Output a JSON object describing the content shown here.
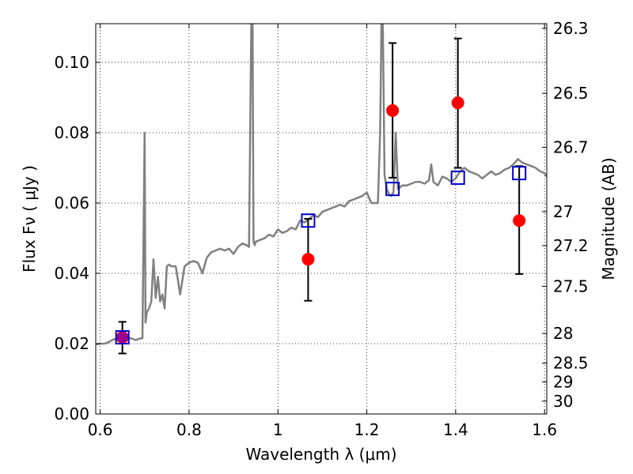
{
  "chart_data": {
    "type": "scatter",
    "xlabel": "Wavelength  λ (μm)",
    "ylabel_left": "Flux  Fν  ( μJy )",
    "ylabel_right": "Magnitude (AB)",
    "xlim": [
      0.59,
      1.605
    ],
    "ylim": [
      0.0,
      0.111
    ],
    "grid": true,
    "x_ticks": [
      0.6,
      0.8,
      1.0,
      1.2,
      1.4,
      1.6
    ],
    "x_tick_labels": [
      "0.6",
      "0.8",
      "1",
      "1.2",
      "1.4",
      "1.6"
    ],
    "y_ticks": [
      0.0,
      0.02,
      0.04,
      0.06,
      0.08,
      0.1
    ],
    "y_tick_labels": [
      "0.00",
      "0.02",
      "0.04",
      "0.06",
      "0.08",
      "0.10"
    ],
    "right_ticks": [
      {
        "label": "26.3",
        "value": 26.3
      },
      {
        "label": "26.5",
        "value": 26.5
      },
      {
        "label": "26.7",
        "value": 26.7
      },
      {
        "label": "27",
        "value": 27.0
      },
      {
        "label": "27.2",
        "value": 27.2
      },
      {
        "label": "27.5",
        "value": 27.5
      },
      {
        "label": "28",
        "value": 28.0
      },
      {
        "label": "28.5",
        "value": 28.5
      },
      {
        "label": "29",
        "value": 29.0
      },
      {
        "label": "30",
        "value": 30.0
      }
    ],
    "observed": {
      "color": "#ff0000",
      "points": [
        {
          "x": 0.65,
          "y": 0.0218,
          "yerr_low": 0.0172,
          "yerr_high": 0.0262
        },
        {
          "x": 1.068,
          "y": 0.044,
          "yerr_low": 0.0322,
          "yerr_high": 0.0555
        },
        {
          "x": 1.258,
          "y": 0.0863,
          "yerr_low": 0.0672,
          "yerr_high": 0.1055
        },
        {
          "x": 1.405,
          "y": 0.0885,
          "yerr_low": 0.07,
          "yerr_high": 0.1068
        },
        {
          "x": 1.543,
          "y": 0.055,
          "yerr_low": 0.0398,
          "yerr_high": 0.0705
        }
      ]
    },
    "model_bandpass": {
      "color": "#0000cc",
      "points": [
        {
          "x": 0.65,
          "y": 0.0218
        },
        {
          "x": 1.068,
          "y": 0.055
        },
        {
          "x": 1.258,
          "y": 0.064
        },
        {
          "x": 1.405,
          "y": 0.0672
        },
        {
          "x": 1.543,
          "y": 0.0685
        }
      ]
    },
    "model_spectrum": {
      "color": "#808080",
      "x": [
        0.59,
        0.6,
        0.61,
        0.62,
        0.63,
        0.64,
        0.66,
        0.67,
        0.68,
        0.69,
        0.695,
        0.7,
        0.702,
        0.705,
        0.71,
        0.715,
        0.72,
        0.725,
        0.73,
        0.735,
        0.74,
        0.745,
        0.75,
        0.755,
        0.76,
        0.77,
        0.78,
        0.79,
        0.8,
        0.81,
        0.82,
        0.83,
        0.84,
        0.85,
        0.86,
        0.87,
        0.88,
        0.89,
        0.9,
        0.91,
        0.92,
        0.93,
        0.935,
        0.94,
        0.943,
        0.945,
        0.948,
        0.95,
        0.96,
        0.97,
        0.98,
        0.99,
        1.0,
        1.01,
        1.02,
        1.03,
        1.04,
        1.05,
        1.06,
        1.07,
        1.08,
        1.09,
        1.1,
        1.11,
        1.12,
        1.13,
        1.14,
        1.15,
        1.16,
        1.17,
        1.18,
        1.19,
        1.2,
        1.21,
        1.22,
        1.225,
        1.23,
        1.233,
        1.236,
        1.24,
        1.245,
        1.25,
        1.255,
        1.26,
        1.265,
        1.27,
        1.28,
        1.29,
        1.3,
        1.31,
        1.32,
        1.33,
        1.34,
        1.345,
        1.35,
        1.36,
        1.37,
        1.38,
        1.39,
        1.4,
        1.41,
        1.42,
        1.43,
        1.44,
        1.45,
        1.46,
        1.47,
        1.48,
        1.49,
        1.5,
        1.51,
        1.52,
        1.53,
        1.54,
        1.55,
        1.56,
        1.57,
        1.58,
        1.59,
        1.6,
        1.605
      ],
      "y": [
        0.0198,
        0.02,
        0.02,
        0.0205,
        0.0212,
        0.0215,
        0.0215,
        0.0215,
        0.021,
        0.0215,
        0.0215,
        0.08,
        0.026,
        0.029,
        0.03,
        0.032,
        0.044,
        0.033,
        0.039,
        0.032,
        0.034,
        0.03,
        0.042,
        0.0425,
        0.042,
        0.042,
        0.034,
        0.042,
        0.043,
        0.0435,
        0.043,
        0.04,
        0.0445,
        0.046,
        0.0465,
        0.047,
        0.0465,
        0.047,
        0.0455,
        0.0475,
        0.0485,
        0.048,
        0.0475,
        0.111,
        0.111,
        0.049,
        0.048,
        0.049,
        0.0495,
        0.05,
        0.051,
        0.0505,
        0.0525,
        0.0515,
        0.052,
        0.053,
        0.0525,
        0.055,
        0.0545,
        0.0555,
        0.0565,
        0.056,
        0.0575,
        0.058,
        0.0585,
        0.059,
        0.0595,
        0.059,
        0.0605,
        0.061,
        0.0615,
        0.062,
        0.063,
        0.06,
        0.06,
        0.06,
        0.08,
        0.111,
        0.111,
        0.068,
        0.064,
        0.0625,
        0.062,
        0.063,
        0.08,
        0.064,
        0.065,
        0.065,
        0.0655,
        0.066,
        0.066,
        0.0655,
        0.0665,
        0.071,
        0.066,
        0.065,
        0.0675,
        0.067,
        0.066,
        0.067,
        0.069,
        0.07,
        0.069,
        0.0685,
        0.068,
        0.067,
        0.068,
        0.069,
        0.068,
        0.0685,
        0.0695,
        0.07,
        0.071,
        0.0725,
        0.0715,
        0.071,
        0.0705,
        0.07,
        0.069,
        0.0685,
        0.0675
      ]
    }
  }
}
